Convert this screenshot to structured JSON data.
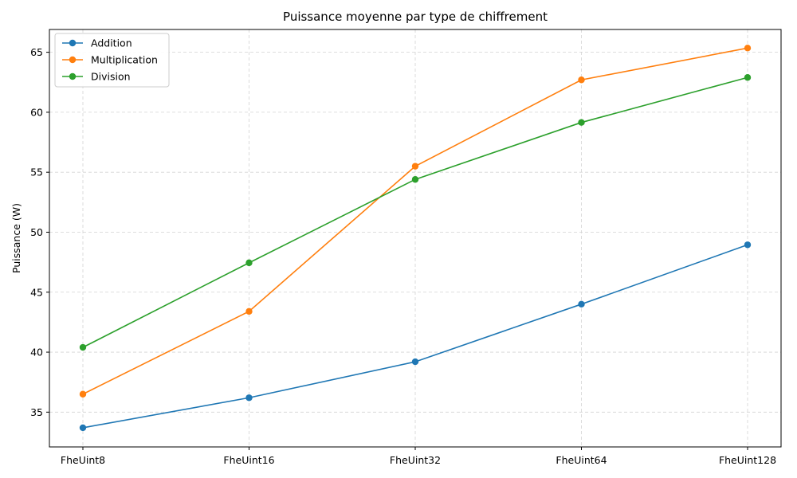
{
  "chart_data": {
    "type": "line",
    "title": "Puissance moyenne par type de chiffrement",
    "xlabel": "",
    "ylabel": "Puissance (W)",
    "categories": [
      "FheUint8",
      "FheUint16",
      "FheUint32",
      "FheUint64",
      "FheUint128"
    ],
    "ylim": [
      32.1,
      66.9
    ],
    "yticks": [
      35,
      40,
      45,
      50,
      55,
      60,
      65
    ],
    "grid": true,
    "legend_position": "top-left",
    "series": [
      {
        "name": "Addition",
        "color": "#1f77b4",
        "values": [
          33.7,
          36.2,
          39.2,
          44.0,
          48.95
        ]
      },
      {
        "name": "Multiplication",
        "color": "#ff7f0e",
        "values": [
          36.5,
          43.4,
          55.5,
          62.7,
          65.35
        ]
      },
      {
        "name": "Division",
        "color": "#2ca02c",
        "values": [
          40.4,
          47.45,
          54.4,
          59.15,
          62.9
        ]
      }
    ]
  }
}
